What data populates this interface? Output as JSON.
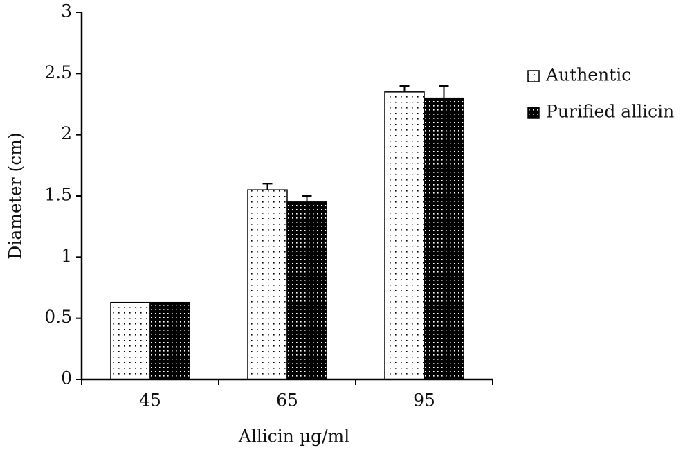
{
  "chart_data": {
    "type": "bar",
    "x_label": "Allicin µg/ml",
    "y_label": "Diameter (cm)",
    "categories": [
      "45",
      "65",
      "95"
    ],
    "series": [
      {
        "name": "Authentic",
        "color": "#ffffff",
        "values": [
          0.63,
          1.55,
          2.35
        ],
        "errors": [
          null,
          0.05,
          0.05
        ]
      },
      {
        "name": "Purified allicin",
        "color": "#000000",
        "values": [
          0.63,
          1.45,
          2.3
        ],
        "errors": [
          null,
          0.05,
          0.1
        ]
      }
    ],
    "ylim": [
      0,
      3
    ],
    "yticks": [
      0,
      0.5,
      1,
      1.5,
      2,
      2.5,
      3
    ],
    "legend": "right"
  }
}
